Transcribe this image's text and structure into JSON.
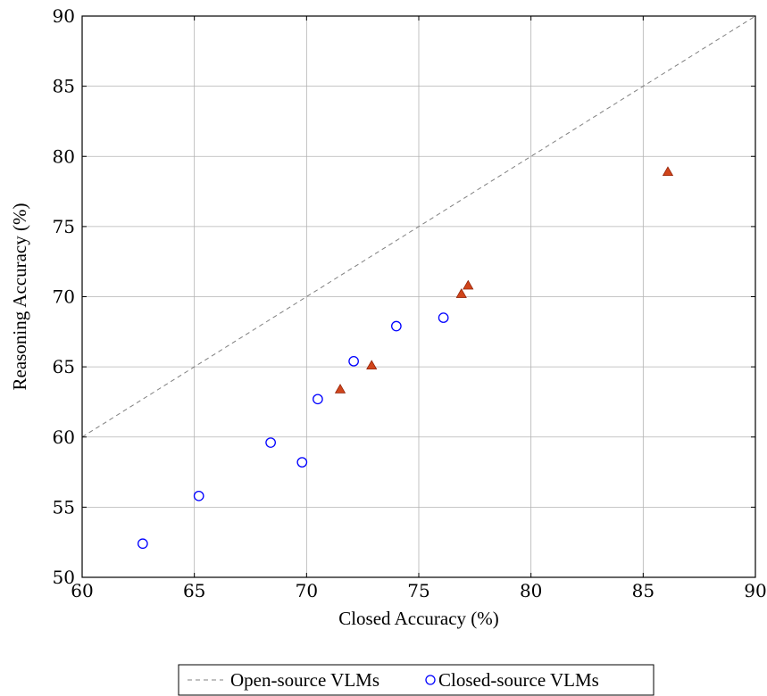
{
  "chart_data": {
    "type": "scatter",
    "title": "",
    "xlabel": "Closed Accuracy (%)",
    "ylabel": "Reasoning Accuracy (%)",
    "xlim": [
      60,
      90
    ],
    "ylim": [
      50,
      90
    ],
    "xticks": [
      60,
      65,
      70,
      75,
      80,
      85,
      90
    ],
    "yticks": [
      50,
      55,
      60,
      65,
      70,
      75,
      80,
      85,
      90
    ],
    "grid": true,
    "reference_line": {
      "from": [
        60,
        60
      ],
      "to": [
        90,
        90
      ],
      "style": "dashed",
      "color": "#808080"
    },
    "legend": {
      "placement": "bottom",
      "entries": [
        {
          "label": "Open-source VLMs",
          "marker": "dashed-line",
          "color": "#808080"
        },
        {
          "label": "Closed-source VLMs",
          "marker": "circle",
          "color": "#0000ff"
        }
      ]
    },
    "series": [
      {
        "marker": "circle",
        "color": "#0000ff",
        "points": [
          {
            "x": 62.7,
            "y": 52.4
          },
          {
            "x": 65.2,
            "y": 55.8
          },
          {
            "x": 68.4,
            "y": 59.6
          },
          {
            "x": 69.8,
            "y": 58.2
          },
          {
            "x": 70.5,
            "y": 62.7
          },
          {
            "x": 72.1,
            "y": 65.4
          },
          {
            "x": 74.0,
            "y": 67.9
          },
          {
            "x": 76.1,
            "y": 68.5
          }
        ]
      },
      {
        "marker": "triangle",
        "color": "#d0451b",
        "points": [
          {
            "x": 71.5,
            "y": 63.4
          },
          {
            "x": 72.9,
            "y": 65.1
          },
          {
            "x": 76.9,
            "y": 70.2
          },
          {
            "x": 77.2,
            "y": 70.8
          },
          {
            "x": 86.1,
            "y": 78.9
          }
        ]
      }
    ]
  }
}
